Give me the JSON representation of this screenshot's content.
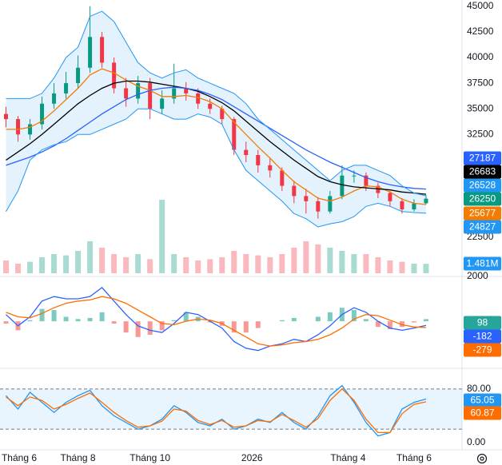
{
  "chart_data": [
    {
      "type": "candlestick",
      "x": [
        0,
        1,
        2,
        3,
        4,
        5,
        6,
        7,
        8,
        9,
        10,
        11,
        12,
        13,
        14,
        15,
        16,
        17,
        18,
        19,
        20,
        21,
        22,
        23,
        24,
        25,
        26,
        27,
        28,
        29,
        30,
        31,
        32,
        33,
        34,
        35
      ],
      "xlim": [
        -0.5,
        38
      ],
      "xticks": [
        {
          "value": 0,
          "label": "Tháng 6"
        },
        {
          "value": 6,
          "label": "Tháng 8"
        },
        {
          "value": 12,
          "label": "Tháng 10"
        },
        {
          "value": 20.5,
          "label": "2026"
        },
        {
          "value": 28.5,
          "label": "Tháng 4"
        },
        {
          "value": 34,
          "label": "Tháng 6"
        }
      ],
      "ylim": [
        18750,
        45600
      ],
      "yticks": [
        45000,
        42500,
        40000,
        37500,
        35000,
        32500,
        22500
      ],
      "grid": false,
      "up_color": "#089981",
      "down_color": "#f23645",
      "open": [
        34500,
        34000,
        32500,
        33500,
        35500,
        36500,
        37500,
        39000,
        42000,
        39500,
        37000,
        36000,
        37500,
        35000,
        36000,
        37000,
        36500,
        35500,
        35000,
        34000,
        31000,
        30500,
        29500,
        29000,
        27500,
        26500,
        26000,
        25000,
        26500,
        28500,
        28500,
        27500,
        26800,
        26000,
        25200,
        25800
      ],
      "high": [
        35200,
        34300,
        34000,
        36200,
        37500,
        38600,
        40200,
        45000,
        42500,
        40000,
        38000,
        38200,
        38000,
        36800,
        39400,
        37600,
        37000,
        36000,
        35300,
        34200,
        31800,
        31000,
        30200,
        29300,
        28000,
        27200,
        26400,
        27000,
        29500,
        29000,
        28800,
        27800,
        27000,
        26300,
        26200,
        26600
      ],
      "low": [
        33200,
        31800,
        32000,
        33000,
        35000,
        36000,
        37000,
        38500,
        39000,
        36500,
        35200,
        35500,
        34000,
        34500,
        35500,
        35800,
        35000,
        34500,
        33500,
        30500,
        29800,
        28800,
        28300,
        27000,
        25800,
        24800,
        24300,
        24800,
        26200,
        27800,
        27000,
        26300,
        25500,
        24800,
        25000,
        25700
      ],
      "close": [
        34000,
        32500,
        33500,
        35500,
        36500,
        37500,
        39000,
        42000,
        39500,
        37000,
        36000,
        37500,
        35000,
        36000,
        37000,
        36500,
        35500,
        35000,
        34000,
        31000,
        30500,
        29500,
        29000,
        27500,
        26500,
        26000,
        25000,
        26500,
        28500,
        28500,
        27500,
        26800,
        26000,
        25200,
        25800,
        26250
      ],
      "band_color": "rgba(33,150,243,0.12)",
      "series": [
        {
          "color": "#f57c00",
          "values": [
            33000,
            33000,
            33200,
            33800,
            34800,
            35900,
            37000,
            38300,
            38900,
            38500,
            37800,
            37200,
            36800,
            36200,
            36200,
            36300,
            36100,
            35700,
            35000,
            33700,
            32500,
            31300,
            30200,
            29000,
            27900,
            27100,
            26300,
            26000,
            26400,
            27000,
            27500,
            27400,
            26900,
            26200,
            25800,
            25677
          ]
        },
        {
          "color": "#000000",
          "values": [
            30000,
            30800,
            31600,
            32500,
            33500,
            34500,
            35500,
            36300,
            37000,
            37500,
            37700,
            37700,
            37600,
            37400,
            37200,
            37000,
            36700,
            36200,
            35600,
            34800,
            33800,
            32800,
            31800,
            30900,
            30000,
            29200,
            28400,
            27900,
            27600,
            27400,
            27300,
            27200,
            27100,
            26900,
            26800,
            26683
          ]
        },
        {
          "color": "#2962ff",
          "values": [
            29500,
            29900,
            30300,
            30800,
            31400,
            32100,
            32900,
            33700,
            34500,
            35200,
            35900,
            36400,
            36800,
            37000,
            37100,
            37000,
            36800,
            36400,
            35900,
            35200,
            34500,
            33800,
            33100,
            32400,
            31700,
            31000,
            30400,
            29800,
            29300,
            28800,
            28300,
            27900,
            27600,
            27400,
            27250,
            27187
          ]
        },
        {
          "color": "#2196f3",
          "values": [
            36000,
            36000,
            36000,
            36500,
            38000,
            40000,
            41000,
            44000,
            44500,
            43500,
            41500,
            39500,
            38500,
            38000,
            38500,
            38800,
            38000,
            37500,
            37000,
            36500,
            35500,
            34000,
            33000,
            32000,
            31000,
            30000,
            29000,
            28000,
            29000,
            29500,
            29500,
            29000,
            28500,
            27500,
            26800,
            26528
          ]
        },
        {
          "color": "#2196f3",
          "values": [
            25000,
            27000,
            30000,
            31000,
            31500,
            31800,
            32500,
            32500,
            33000,
            33500,
            34000,
            35000,
            35000,
            34500,
            34000,
            34000,
            34500,
            34200,
            33500,
            31000,
            29000,
            28000,
            27000,
            26000,
            24800,
            24300,
            23500,
            23800,
            24000,
            24500,
            25500,
            25800,
            25500,
            25000,
            24900,
            24827
          ]
        }
      ],
      "volume": {
        "ylim": [
          0,
          12
        ],
        "color": "#2196f3",
        "last_label": "1.481M",
        "values": [
          2,
          1.5,
          1.8,
          2.5,
          3,
          2.8,
          3.5,
          5,
          4,
          3,
          2.5,
          3,
          2.2,
          11.5,
          3,
          2.5,
          2,
          2.2,
          2.5,
          3.5,
          3,
          2.8,
          2.5,
          3,
          4,
          5,
          4.5,
          4,
          3.5,
          3,
          3,
          2.5,
          2,
          1.8,
          1.5,
          1.481
        ]
      }
    },
    {
      "type": "line",
      "ylim": [
        -1700,
        2100
      ],
      "yticks": [
        2000
      ],
      "bars": {
        "up_color": "#26a69a",
        "down_color": "#ef5350",
        "values": [
          -100,
          -400,
          50,
          550,
          500,
          200,
          100,
          150,
          400,
          -100,
          -500,
          -700,
          -600,
          -400,
          50,
          400,
          200,
          -50,
          -200,
          -500,
          -500,
          -300,
          0,
          50,
          150,
          0,
          200,
          400,
          600,
          500,
          100,
          -250,
          -350,
          -250,
          -50,
          98
        ]
      },
      "series": [
        {
          "color": "#2962ff",
          "values": [
            300,
            -200,
            200,
            900,
            1100,
            1000,
            1000,
            1100,
            1500,
            900,
            300,
            -200,
            -400,
            -500,
            -100,
            400,
            300,
            0,
            -300,
            -900,
            -1200,
            -1300,
            -1100,
            -1000,
            -800,
            -900,
            -600,
            -200,
            300,
            600,
            400,
            0,
            -300,
            -400,
            -300,
            -182
          ]
        },
        {
          "color": "#ff6d00",
          "values": [
            400,
            200,
            150,
            350,
            600,
            800,
            900,
            950,
            1100,
            1000,
            800,
            500,
            200,
            -100,
            -150,
            0,
            100,
            50,
            -100,
            -400,
            -700,
            -1000,
            -1100,
            -1050,
            -950,
            -900,
            -800,
            -600,
            -300,
            100,
            300,
            250,
            50,
            -150,
            -250,
            -279
          ]
        }
      ]
    },
    {
      "type": "line",
      "ylim": [
        -6,
        106
      ],
      "yticks": [
        {
          "value": 80,
          "label": "80.00"
        },
        {
          "value": 0,
          "label": "0.00"
        }
      ],
      "band": [
        20,
        80
      ],
      "band_color": "rgba(33,150,243,0.1)",
      "series": [
        {
          "color": "#2196f3",
          "values": [
            70,
            50,
            75,
            60,
            45,
            60,
            70,
            78,
            55,
            40,
            30,
            20,
            25,
            35,
            55,
            45,
            30,
            25,
            35,
            20,
            25,
            35,
            30,
            45,
            30,
            20,
            40,
            70,
            85,
            60,
            30,
            10,
            15,
            50,
            60,
            65.05
          ]
        },
        {
          "color": "#ff6d00",
          "values": [
            68,
            55,
            68,
            63,
            50,
            57,
            66,
            74,
            60,
            45,
            33,
            23,
            25,
            32,
            50,
            47,
            33,
            27,
            33,
            23,
            25,
            33,
            31,
            42,
            33,
            23,
            36,
            63,
            80,
            63,
            35,
            15,
            15,
            43,
            57,
            60.87
          ]
        }
      ]
    }
  ]
}
